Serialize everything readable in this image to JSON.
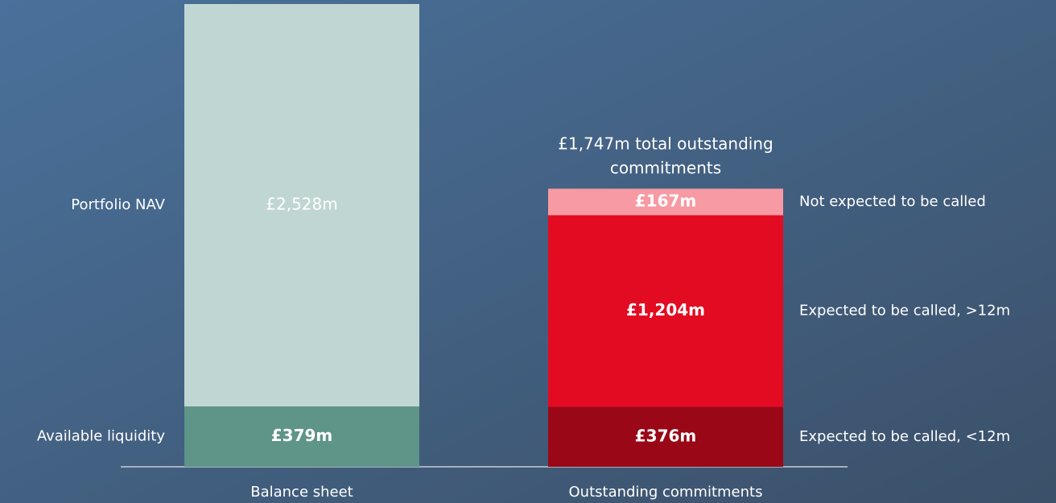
{
  "chart_data": {
    "type": "bar",
    "stacked": true,
    "categories": [
      "Balance sheet",
      "Outstanding commitments"
    ],
    "series": [
      {
        "name": "Available liquidity",
        "color": "#5f9488",
        "values": [
          379,
          null
        ],
        "value_labels": [
          "£379m",
          null
        ]
      },
      {
        "name": "Portfolio NAV",
        "color": "#c0d6d2",
        "values": [
          2528,
          null
        ],
        "value_labels": [
          "£2,528m",
          null
        ]
      },
      {
        "name": "Expected to be called, <12m",
        "color": "#9a0716",
        "values": [
          null,
          376
        ],
        "value_labels": [
          null,
          "£376m"
        ]
      },
      {
        "name": "Expected to be called, >12m",
        "color": "#e30b22",
        "values": [
          null,
          1204
        ],
        "value_labels": [
          null,
          "£1,204m"
        ]
      },
      {
        "name": "Not expected to be called",
        "color": "#f79aa3",
        "values": [
          null,
          167
        ],
        "value_labels": [
          null,
          "£167m"
        ]
      }
    ],
    "annotation": "£1,747m total outstanding commitments"
  }
}
